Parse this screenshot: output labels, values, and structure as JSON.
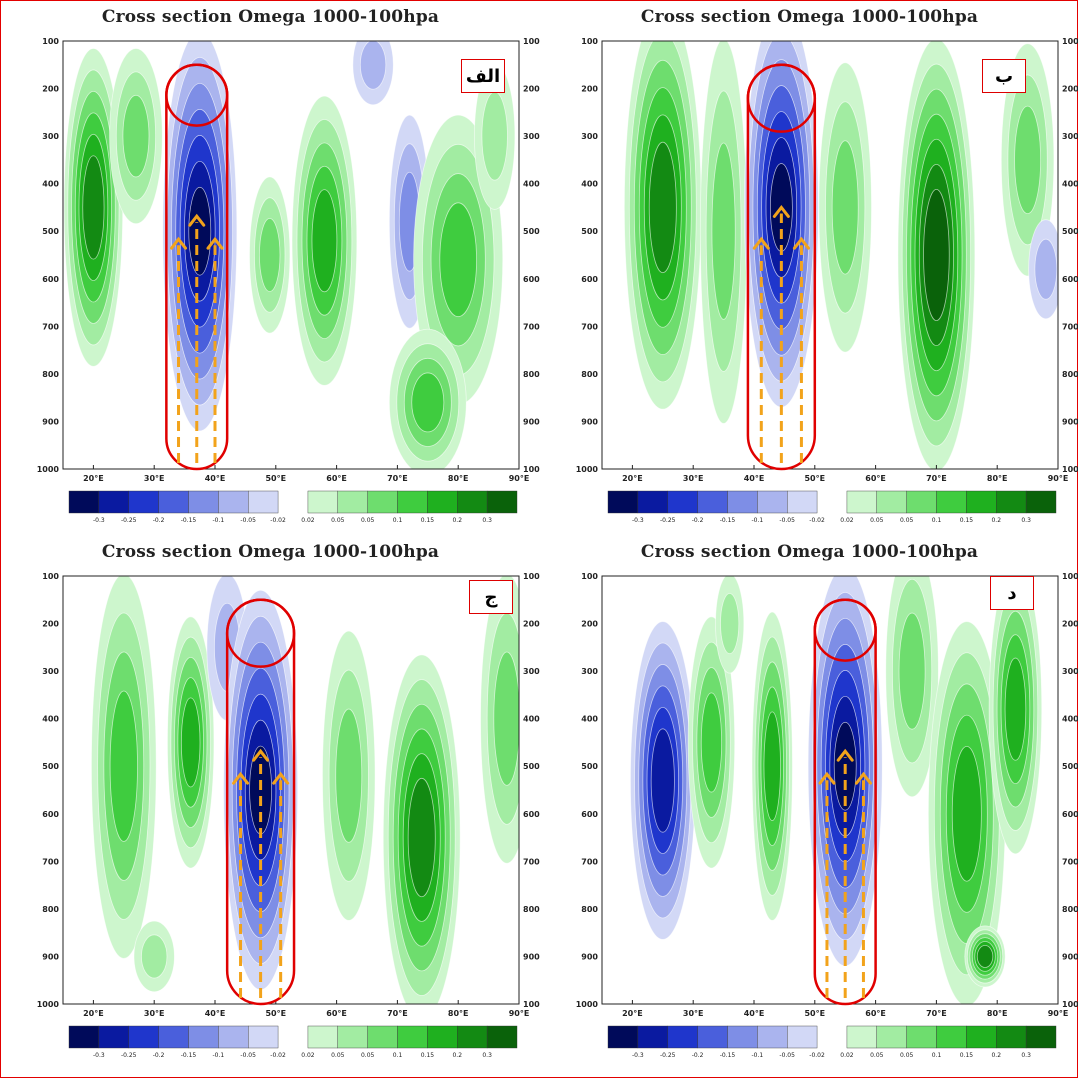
{
  "figure": {
    "panels": [
      {
        "id": "alef",
        "title": "Cross section Omega 1000-100hpa",
        "badge": "الف"
      },
      {
        "id": "be",
        "title": "Cross section Omega 1000-100hpa",
        "badge": "ب"
      },
      {
        "id": "jim",
        "title": "Cross section Omega 1000-100hpa",
        "badge": "ج"
      },
      {
        "id": "dal",
        "title": "Cross section Omega 1000-100hpa",
        "badge": "د"
      }
    ]
  },
  "colors": {
    "neg": [
      "#000a5a",
      "#0a1aa0",
      "#1f36cc",
      "#4a5fdc",
      "#7e8ee6",
      "#aab4ee",
      "#d2d8f6"
    ],
    "pos": [
      "#cdf6cd",
      "#a2eca2",
      "#6edd6e",
      "#3fcc3f",
      "#1fb01f",
      "#138a13",
      "#0a620a"
    ],
    "highlight_outline": "#e00000",
    "arrow": "#f2a31b",
    "badge_border": "#d00000"
  },
  "chart_data": [
    {
      "type": "heatmap",
      "title": "Cross section Omega 1000-100hpa",
      "x_ticks": [
        "20°E",
        "30°E",
        "40°E",
        "50°E",
        "60°E",
        "70°E",
        "80°E",
        "90°E"
      ],
      "y_ticks": [
        100,
        200,
        300,
        400,
        500,
        600,
        700,
        800,
        900,
        1000
      ],
      "y_scale": "pressure, reversed (1000 at bottom)",
      "colorbar": {
        "labels": [
          "-0.3",
          "-0.25",
          "-0.2",
          "-0.15",
          "-0.1",
          "-0.05",
          "-0.02",
          "0.02",
          "0.05",
          "0.05",
          "0.1",
          "0.15",
          "0.2",
          "0.3"
        ]
      },
      "ascent_core": {
        "lon": 37.5,
        "p_min": 500,
        "lat_note": "strongest ascent 300-800 hPa"
      },
      "highlight": {
        "lon_range": [
          32,
          42
        ],
        "p_range": [
          150,
          1000
        ]
      }
    },
    {
      "type": "heatmap",
      "title": "Cross section Omega 1000-100hpa",
      "x_ticks": [
        "20°E",
        "30°E",
        "40°E",
        "50°E",
        "60°E",
        "70°E",
        "80°E",
        "90°E"
      ],
      "y_ticks": [
        100,
        200,
        300,
        400,
        500,
        600,
        700,
        800,
        900,
        1000
      ],
      "colorbar": {
        "labels": [
          "-0.3",
          "-0.25",
          "-0.2",
          "-0.15",
          "-0.1",
          "-0.05",
          "-0.02",
          "0.02",
          "0.05",
          "0.05",
          "0.1",
          "0.15",
          "0.2",
          "0.3"
        ]
      },
      "ascent_core": {
        "lon": 44.5,
        "p_min": 450
      },
      "highlight": {
        "lon_range": [
          39,
          50
        ],
        "p_range": [
          150,
          1000
        ]
      }
    },
    {
      "type": "heatmap",
      "title": "Cross section Omega 1000-100hpa",
      "x_ticks": [
        "20°E",
        "30°E",
        "40°E",
        "50°E",
        "60°E",
        "70°E",
        "80°E",
        "90°E"
      ],
      "y_ticks": [
        100,
        200,
        300,
        400,
        500,
        600,
        700,
        800,
        900,
        1000
      ],
      "colorbar": {
        "labels": [
          "-0.3",
          "-0.25",
          "-0.2",
          "-0.15",
          "-0.1",
          "-0.05",
          "-0.02",
          "0.02",
          "0.05",
          "0.05",
          "0.1",
          "0.15",
          "0.2",
          "0.3"
        ]
      },
      "ascent_core": {
        "lon": 47.5,
        "p_min": 550
      },
      "highlight": {
        "lon_range": [
          42,
          53
        ],
        "p_range": [
          150,
          1000
        ]
      }
    },
    {
      "type": "heatmap",
      "title": "Cross section Omega 1000-100hpa",
      "x_ticks": [
        "20°E",
        "30°E",
        "40°E",
        "50°E",
        "60°E",
        "70°E",
        "80°E",
        "90°E"
      ],
      "y_ticks": [
        100,
        200,
        300,
        400,
        500,
        600,
        700,
        800,
        900,
        1000
      ],
      "colorbar": {
        "labels": [
          "-0.3",
          "-0.25",
          "-0.2",
          "-0.15",
          "-0.1",
          "-0.05",
          "-0.02",
          "0.02",
          "0.05",
          "0.05",
          "0.1",
          "0.15",
          "0.2",
          "0.3"
        ]
      },
      "ascent_core": {
        "lon": 55,
        "p_min": 500
      },
      "highlight": {
        "lon_range": [
          50,
          60
        ],
        "p_range": [
          150,
          1000
        ]
      }
    }
  ]
}
